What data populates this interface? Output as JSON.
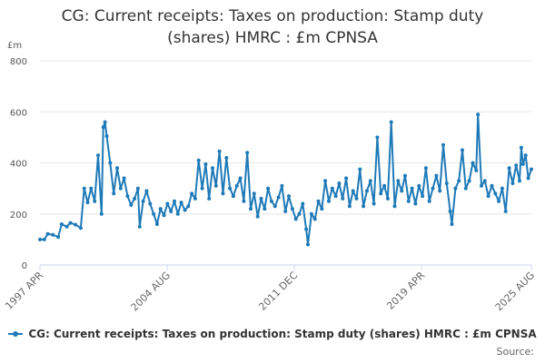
{
  "chart_data": {
    "type": "line",
    "title_lines": [
      "CG: Current receipts: Taxes on production: Stamp duty",
      "(shares) HMRC : £m CPNSA"
    ],
    "unit_label": "£m",
    "ylim": [
      0,
      800
    ],
    "y_ticks": [
      0,
      200,
      400,
      600,
      800
    ],
    "x_range": [
      1997.25,
      2025.58
    ],
    "x_ticks": [
      {
        "label": "1997 APR",
        "value": 1997.25
      },
      {
        "label": "2004 AUG",
        "value": 2004.58
      },
      {
        "label": "2011 DEC",
        "value": 2011.92
      },
      {
        "label": "2019 APR",
        "value": 2019.25
      },
      {
        "label": "2025 AUG",
        "value": 2025.58
      }
    ],
    "series": [
      {
        "name": "CG: Current receipts: Taxes on production: Stamp duty (shares) HMRC : £m CPNSA",
        "color": "#1f7ab8",
        "points": [
          [
            1997.25,
            100
          ],
          [
            1997.5,
            100
          ],
          [
            1997.7,
            122
          ],
          [
            1998.0,
            118
          ],
          [
            1998.3,
            110
          ],
          [
            1998.5,
            160
          ],
          [
            1998.8,
            150
          ],
          [
            1999.0,
            165
          ],
          [
            1999.3,
            158
          ],
          [
            1999.6,
            145
          ],
          [
            1999.8,
            300
          ],
          [
            2000.0,
            245
          ],
          [
            2000.2,
            300
          ],
          [
            2000.4,
            250
          ],
          [
            2000.6,
            430
          ],
          [
            2000.8,
            200
          ],
          [
            2000.9,
            540
          ],
          [
            2001.0,
            560
          ],
          [
            2001.1,
            505
          ],
          [
            2001.3,
            400
          ],
          [
            2001.5,
            280
          ],
          [
            2001.7,
            380
          ],
          [
            2001.9,
            300
          ],
          [
            2002.1,
            340
          ],
          [
            2002.3,
            270
          ],
          [
            2002.5,
            235
          ],
          [
            2002.7,
            260
          ],
          [
            2002.9,
            300
          ],
          [
            2003.0,
            150
          ],
          [
            2003.2,
            250
          ],
          [
            2003.4,
            290
          ],
          [
            2003.6,
            240
          ],
          [
            2003.8,
            200
          ],
          [
            2004.0,
            160
          ],
          [
            2004.2,
            220
          ],
          [
            2004.4,
            195
          ],
          [
            2004.6,
            240
          ],
          [
            2004.8,
            210
          ],
          [
            2005.0,
            250
          ],
          [
            2005.2,
            200
          ],
          [
            2005.4,
            245
          ],
          [
            2005.6,
            215
          ],
          [
            2005.8,
            230
          ],
          [
            2006.0,
            280
          ],
          [
            2006.2,
            260
          ],
          [
            2006.4,
            410
          ],
          [
            2006.6,
            300
          ],
          [
            2006.8,
            395
          ],
          [
            2007.0,
            260
          ],
          [
            2007.2,
            380
          ],
          [
            2007.4,
            310
          ],
          [
            2007.6,
            445
          ],
          [
            2007.8,
            280
          ],
          [
            2008.0,
            420
          ],
          [
            2008.2,
            300
          ],
          [
            2008.4,
            270
          ],
          [
            2008.6,
            310
          ],
          [
            2008.8,
            340
          ],
          [
            2009.0,
            250
          ],
          [
            2009.2,
            440
          ],
          [
            2009.4,
            220
          ],
          [
            2009.6,
            280
          ],
          [
            2009.8,
            190
          ],
          [
            2010.0,
            260
          ],
          [
            2010.2,
            220
          ],
          [
            2010.4,
            300
          ],
          [
            2010.6,
            250
          ],
          [
            2010.8,
            230
          ],
          [
            2011.0,
            265
          ],
          [
            2011.2,
            310
          ],
          [
            2011.4,
            210
          ],
          [
            2011.6,
            270
          ],
          [
            2011.8,
            220
          ],
          [
            2012.0,
            180
          ],
          [
            2012.2,
            200
          ],
          [
            2012.4,
            240
          ],
          [
            2012.6,
            140
          ],
          [
            2012.7,
            80
          ],
          [
            2012.9,
            200
          ],
          [
            2013.1,
            180
          ],
          [
            2013.3,
            250
          ],
          [
            2013.5,
            220
          ],
          [
            2013.7,
            330
          ],
          [
            2013.9,
            250
          ],
          [
            2014.1,
            300
          ],
          [
            2014.3,
            270
          ],
          [
            2014.5,
            320
          ],
          [
            2014.7,
            260
          ],
          [
            2014.9,
            340
          ],
          [
            2015.1,
            230
          ],
          [
            2015.3,
            290
          ],
          [
            2015.5,
            260
          ],
          [
            2015.7,
            375
          ],
          [
            2015.9,
            230
          ],
          [
            2016.1,
            290
          ],
          [
            2016.3,
            330
          ],
          [
            2016.5,
            240
          ],
          [
            2016.7,
            500
          ],
          [
            2016.9,
            280
          ],
          [
            2017.1,
            310
          ],
          [
            2017.3,
            260
          ],
          [
            2017.5,
            560
          ],
          [
            2017.7,
            230
          ],
          [
            2017.9,
            330
          ],
          [
            2018.1,
            290
          ],
          [
            2018.3,
            350
          ],
          [
            2018.5,
            250
          ],
          [
            2018.7,
            300
          ],
          [
            2018.9,
            240
          ],
          [
            2019.1,
            310
          ],
          [
            2019.3,
            270
          ],
          [
            2019.5,
            380
          ],
          [
            2019.7,
            250
          ],
          [
            2019.9,
            300
          ],
          [
            2020.1,
            350
          ],
          [
            2020.3,
            290
          ],
          [
            2020.5,
            470
          ],
          [
            2020.7,
            320
          ],
          [
            2020.9,
            210
          ],
          [
            2021.0,
            160
          ],
          [
            2021.2,
            300
          ],
          [
            2021.4,
            330
          ],
          [
            2021.6,
            450
          ],
          [
            2021.8,
            300
          ],
          [
            2022.0,
            330
          ],
          [
            2022.2,
            400
          ],
          [
            2022.4,
            370
          ],
          [
            2022.5,
            590
          ],
          [
            2022.7,
            310
          ],
          [
            2022.9,
            330
          ],
          [
            2023.1,
            270
          ],
          [
            2023.3,
            310
          ],
          [
            2023.5,
            280
          ],
          [
            2023.7,
            250
          ],
          [
            2023.9,
            300
          ],
          [
            2024.1,
            210
          ],
          [
            2024.3,
            380
          ],
          [
            2024.5,
            320
          ],
          [
            2024.7,
            390
          ],
          [
            2024.9,
            330
          ],
          [
            2025.0,
            460
          ],
          [
            2025.1,
            395
          ],
          [
            2025.25,
            430
          ],
          [
            2025.4,
            340
          ],
          [
            2025.58,
            375
          ]
        ]
      }
    ],
    "legend": "CG: Current receipts: Taxes on production: Stamp duty (shares) HMRC : £m CPNSA",
    "source_label": "Source:"
  }
}
